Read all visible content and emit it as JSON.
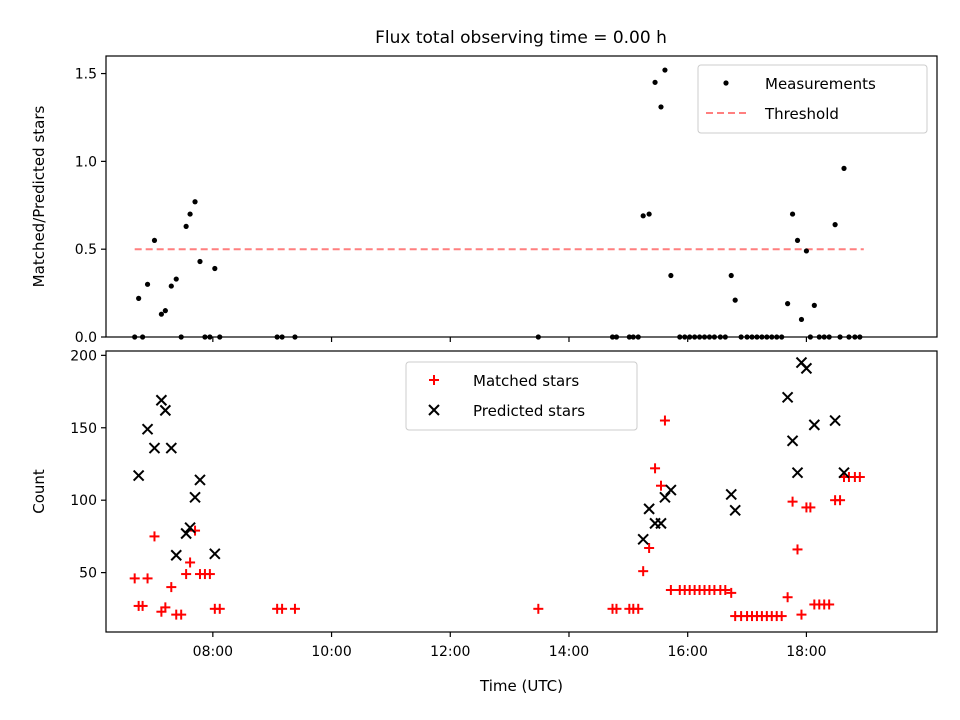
{
  "figure": {
    "title": "Flux total observing time = 0.00 h"
  },
  "chart_data": [
    {
      "type": "scatter",
      "title": "Flux total observing time = 0.00 h",
      "xlabel": "",
      "ylabel": "Matched/Predicted stars",
      "xlim": [
        "06:12",
        "20:12"
      ],
      "ylim": [
        0,
        1.6
      ],
      "yticks": [
        0.0,
        0.5,
        1.0,
        1.5
      ],
      "ytick_labels": [
        "0.0",
        "0.5",
        "1.0",
        "1.5"
      ],
      "xticks": [
        "08:00",
        "10:00",
        "12:00",
        "14:00",
        "16:00",
        "18:00"
      ],
      "xtick_labels_shown": false,
      "grid": false,
      "legend": {
        "placement": "top-right",
        "entries": [
          "Measurements",
          "Threshold"
        ]
      },
      "threshold": {
        "name": "Threshold",
        "y": 0.5,
        "x_range": [
          "06:41",
          "18:58"
        ],
        "color": "#ff7f7f",
        "style": "dashed"
      },
      "series": [
        {
          "name": "Measurements",
          "marker": "dot",
          "color": "#000000",
          "points": [
            [
              "06:41",
              0.0
            ],
            [
              "06:45",
              0.22
            ],
            [
              "06:49",
              0.0
            ],
            [
              "06:54",
              0.3
            ],
            [
              "07:01",
              0.55
            ],
            [
              "07:08",
              0.13
            ],
            [
              "07:12",
              0.15
            ],
            [
              "07:18",
              0.29
            ],
            [
              "07:23",
              0.33
            ],
            [
              "07:28",
              0.0
            ],
            [
              "07:33",
              0.63
            ],
            [
              "07:37",
              0.7
            ],
            [
              "07:42",
              0.77
            ],
            [
              "07:47",
              0.43
            ],
            [
              "07:52",
              0.0
            ],
            [
              "07:57",
              0.0
            ],
            [
              "08:02",
              0.39
            ],
            [
              "08:07",
              0.0
            ],
            [
              "09:05",
              0.0
            ],
            [
              "09:10",
              0.0
            ],
            [
              "09:23",
              0.0
            ],
            [
              "13:29",
              0.0
            ],
            [
              "14:44",
              0.0
            ],
            [
              "14:48",
              0.0
            ],
            [
              "15:01",
              0.0
            ],
            [
              "15:05",
              0.0
            ],
            [
              "15:10",
              0.0
            ],
            [
              "15:15",
              0.69
            ],
            [
              "15:21",
              0.7
            ],
            [
              "15:27",
              1.45
            ],
            [
              "15:33",
              1.31
            ],
            [
              "15:37",
              1.52
            ],
            [
              "15:43",
              0.35
            ],
            [
              "15:52",
              0.0
            ],
            [
              "15:57",
              0.0
            ],
            [
              "16:02",
              0.0
            ],
            [
              "16:07",
              0.0
            ],
            [
              "16:12",
              0.0
            ],
            [
              "16:17",
              0.0
            ],
            [
              "16:22",
              0.0
            ],
            [
              "16:27",
              0.0
            ],
            [
              "16:33",
              0.0
            ],
            [
              "16:38",
              0.0
            ],
            [
              "16:44",
              0.35
            ],
            [
              "16:48",
              0.21
            ],
            [
              "16:54",
              0.0
            ],
            [
              "17:00",
              0.0
            ],
            [
              "17:05",
              0.0
            ],
            [
              "17:10",
              0.0
            ],
            [
              "17:15",
              0.0
            ],
            [
              "17:20",
              0.0
            ],
            [
              "17:25",
              0.0
            ],
            [
              "17:30",
              0.0
            ],
            [
              "17:35",
              0.0
            ],
            [
              "17:41",
              0.19
            ],
            [
              "17:46",
              0.7
            ],
            [
              "17:51",
              0.55
            ],
            [
              "17:55",
              0.1
            ],
            [
              "18:00",
              0.49
            ],
            [
              "18:04",
              0.0
            ],
            [
              "18:08",
              0.18
            ],
            [
              "18:13",
              0.0
            ],
            [
              "18:18",
              0.0
            ],
            [
              "18:23",
              0.0
            ],
            [
              "18:29",
              0.64
            ],
            [
              "18:34",
              0.0
            ],
            [
              "18:38",
              0.96
            ],
            [
              "18:43",
              0.0
            ],
            [
              "18:49",
              0.0
            ],
            [
              "18:54",
              0.0
            ]
          ]
        }
      ]
    },
    {
      "type": "scatter",
      "title": "",
      "xlabel": "Time (UTC)",
      "ylabel": "Count",
      "xlim": [
        "06:12",
        "20:12"
      ],
      "ylim": [
        9,
        203
      ],
      "yticks": [
        50,
        100,
        150,
        200
      ],
      "ytick_labels": [
        "50",
        "100",
        "150",
        "200"
      ],
      "xticks": [
        "08:00",
        "10:00",
        "12:00",
        "14:00",
        "16:00",
        "18:00"
      ],
      "xtick_labels": [
        "08:00",
        "10:00",
        "12:00",
        "14:00",
        "16:00",
        "18:00"
      ],
      "grid": false,
      "legend": {
        "placement": "top-center",
        "entries": [
          "Matched stars",
          "Predicted stars"
        ]
      },
      "series": [
        {
          "name": "Matched stars",
          "marker": "plus",
          "color": "#ff0000",
          "points": [
            [
              "06:41",
              46
            ],
            [
              "06:45",
              27
            ],
            [
              "06:49",
              27
            ],
            [
              "06:54",
              46
            ],
            [
              "07:01",
              75
            ],
            [
              "07:08",
              23
            ],
            [
              "07:12",
              26
            ],
            [
              "07:18",
              40
            ],
            [
              "07:23",
              21
            ],
            [
              "07:28",
              21
            ],
            [
              "07:33",
              49
            ],
            [
              "07:37",
              57
            ],
            [
              "07:42",
              79
            ],
            [
              "07:47",
              49
            ],
            [
              "07:52",
              49
            ],
            [
              "07:57",
              49
            ],
            [
              "08:02",
              25
            ],
            [
              "08:07",
              25
            ],
            [
              "09:05",
              25
            ],
            [
              "09:10",
              25
            ],
            [
              "09:23",
              25
            ],
            [
              "13:29",
              25
            ],
            [
              "14:44",
              25
            ],
            [
              "14:48",
              25
            ],
            [
              "15:01",
              25
            ],
            [
              "15:05",
              25
            ],
            [
              "15:10",
              25
            ],
            [
              "15:15",
              51
            ],
            [
              "15:21",
              67
            ],
            [
              "15:27",
              122
            ],
            [
              "15:33",
              110
            ],
            [
              "15:37",
              155
            ],
            [
              "15:43",
              38
            ],
            [
              "15:52",
              38
            ],
            [
              "15:57",
              38
            ],
            [
              "16:02",
              38
            ],
            [
              "16:07",
              38
            ],
            [
              "16:12",
              38
            ],
            [
              "16:17",
              38
            ],
            [
              "16:22",
              38
            ],
            [
              "16:27",
              38
            ],
            [
              "16:33",
              38
            ],
            [
              "16:38",
              38
            ],
            [
              "16:44",
              36
            ],
            [
              "16:48",
              20
            ],
            [
              "16:54",
              20
            ],
            [
              "17:00",
              20
            ],
            [
              "17:05",
              20
            ],
            [
              "17:10",
              20
            ],
            [
              "17:15",
              20
            ],
            [
              "17:20",
              20
            ],
            [
              "17:25",
              20
            ],
            [
              "17:30",
              20
            ],
            [
              "17:35",
              20
            ],
            [
              "17:41",
              33
            ],
            [
              "17:46",
              99
            ],
            [
              "17:51",
              66
            ],
            [
              "17:55",
              21
            ],
            [
              "18:00",
              95
            ],
            [
              "18:04",
              95
            ],
            [
              "18:08",
              28
            ],
            [
              "18:13",
              28
            ],
            [
              "18:18",
              28
            ],
            [
              "18:23",
              28
            ],
            [
              "18:29",
              100
            ],
            [
              "18:34",
              100
            ],
            [
              "18:38",
              116
            ],
            [
              "18:43",
              116
            ],
            [
              "18:49",
              116
            ],
            [
              "18:54",
              116
            ]
          ]
        },
        {
          "name": "Predicted stars",
          "marker": "x",
          "color": "#000000",
          "points": [
            [
              "06:45",
              117
            ],
            [
              "06:54",
              149
            ],
            [
              "07:01",
              136
            ],
            [
              "07:08",
              169
            ],
            [
              "07:12",
              162
            ],
            [
              "07:18",
              136
            ],
            [
              "07:23",
              62
            ],
            [
              "07:33",
              77
            ],
            [
              "07:37",
              81
            ],
            [
              "07:42",
              102
            ],
            [
              "07:47",
              114
            ],
            [
              "08:02",
              63
            ],
            [
              "15:15",
              73
            ],
            [
              "15:21",
              94
            ],
            [
              "15:27",
              84
            ],
            [
              "15:33",
              84
            ],
            [
              "15:37",
              102
            ],
            [
              "15:43",
              107
            ],
            [
              "16:44",
              104
            ],
            [
              "16:48",
              93
            ],
            [
              "17:41",
              171
            ],
            [
              "17:46",
              141
            ],
            [
              "17:51",
              119
            ],
            [
              "17:55",
              195
            ],
            [
              "18:00",
              191
            ],
            [
              "18:08",
              152
            ],
            [
              "18:29",
              155
            ],
            [
              "18:38",
              119
            ]
          ]
        }
      ]
    }
  ]
}
